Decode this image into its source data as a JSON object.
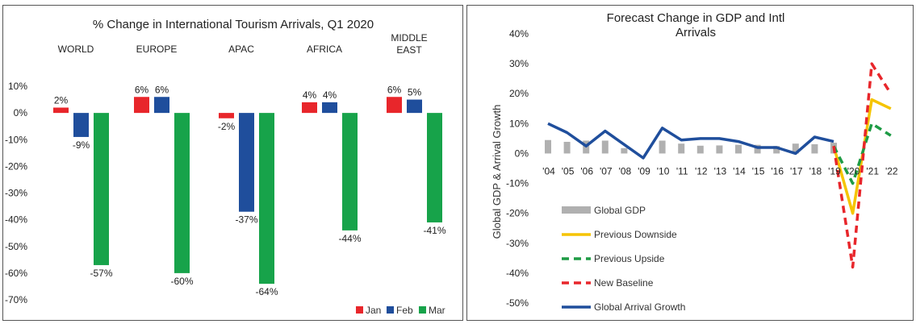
{
  "chart_data": [
    {
      "type": "bar",
      "title": "% Change in International Tourism Arrivals, Q1 2020",
      "categories": [
        "WORLD",
        "EUROPE",
        "APAC",
        "AFRICA",
        "MIDDLE EAST"
      ],
      "category_lines": [
        [
          "WORLD"
        ],
        [
          "EUROPE"
        ],
        [
          "APAC"
        ],
        [
          "AFRICA"
        ],
        [
          "MIDDLE",
          "EAST"
        ]
      ],
      "series": [
        {
          "name": "Jan",
          "color": "#e8262b",
          "values": [
            2,
            6,
            -2,
            4,
            6
          ]
        },
        {
          "name": "Feb",
          "color": "#1f4e9c",
          "values": [
            -9,
            6,
            -37,
            4,
            5
          ]
        },
        {
          "name": "Mar",
          "color": "#17a34a",
          "values": [
            -57,
            -60,
            -64,
            -44,
            -41
          ]
        }
      ],
      "data_labels": [
        [
          "2%",
          "-9%",
          "-57%"
        ],
        [
          "6%",
          "6%",
          "-60%"
        ],
        [
          "-2%",
          "-37%",
          "-64%"
        ],
        [
          "4%",
          "4%",
          "-44%"
        ],
        [
          "6%",
          "5%",
          "-41%"
        ]
      ],
      "yticks": [
        10,
        0,
        -10,
        -20,
        -30,
        -40,
        -50,
        -60,
        -70
      ],
      "ytick_labels": [
        "10%",
        "0%",
        "-10%",
        "-20%",
        "-30%",
        "-40%",
        "-50%",
        "-60%",
        "-70%"
      ],
      "ylim": [
        -70,
        10
      ],
      "legend": "bottom-right"
    },
    {
      "type": "line",
      "title": "Forecast Change in GDP and Intl Arrivals",
      "title_lines": [
        "Forecast Change in GDP and Intl",
        "Arrivals"
      ],
      "ylabel": "Global GDP & Arrival Growth",
      "x": [
        "'04",
        "'05",
        "'06",
        "'07",
        "'08",
        "'09",
        "'10",
        "'11",
        "'12",
        "'13",
        "'14",
        "'15",
        "'16",
        "'17",
        "'18",
        "'19",
        "'20",
        "'21",
        "'22"
      ],
      "yticks": [
        40,
        30,
        20,
        10,
        0,
        -10,
        -20,
        -30,
        -40,
        -50
      ],
      "ytick_labels": [
        "40%",
        "30%",
        "20%",
        "10%",
        "0%",
        "-10%",
        "-20%",
        "-30%",
        "-40%",
        "-50%"
      ],
      "ylim": [
        -50,
        40
      ],
      "legend": "bottom-left",
      "series": [
        {
          "name": "Global GDP",
          "kind": "bar",
          "color": "#b0b0b0",
          "values": [
            4.5,
            3.9,
            4.3,
            4.3,
            1.8,
            null,
            4.3,
            3.3,
            2.6,
            2.7,
            2.9,
            2.9,
            2.5,
            3.3,
            3.1,
            3.6,
            null,
            null,
            null
          ]
        },
        {
          "name": "Previous Downside",
          "kind": "line",
          "dash": "solid",
          "color": "#f5c400",
          "values": [
            null,
            null,
            null,
            null,
            null,
            null,
            null,
            null,
            null,
            null,
            null,
            null,
            null,
            null,
            null,
            2.5,
            -20,
            18,
            15
          ]
        },
        {
          "name": "Previous Upside",
          "kind": "line",
          "dash": "dashed",
          "color": "#1e9b45",
          "values": [
            null,
            null,
            null,
            null,
            null,
            null,
            null,
            null,
            null,
            null,
            null,
            null,
            null,
            null,
            null,
            2.5,
            -10,
            10,
            6
          ]
        },
        {
          "name": "New Baseline",
          "kind": "line",
          "dash": "dashed",
          "color": "#e8262b",
          "values": [
            null,
            null,
            null,
            null,
            null,
            null,
            null,
            null,
            null,
            null,
            null,
            null,
            null,
            null,
            null,
            2.5,
            -38,
            30,
            20
          ]
        },
        {
          "name": "Global Arrival Growth",
          "kind": "line",
          "dash": "solid",
          "color": "#1f4e9c",
          "values": [
            10,
            7,
            2.5,
            7.5,
            3,
            -1.5,
            8.5,
            4.5,
            5,
            5,
            4,
            2,
            2,
            0,
            5.5,
            4,
            null,
            null,
            null
          ]
        }
      ]
    }
  ]
}
